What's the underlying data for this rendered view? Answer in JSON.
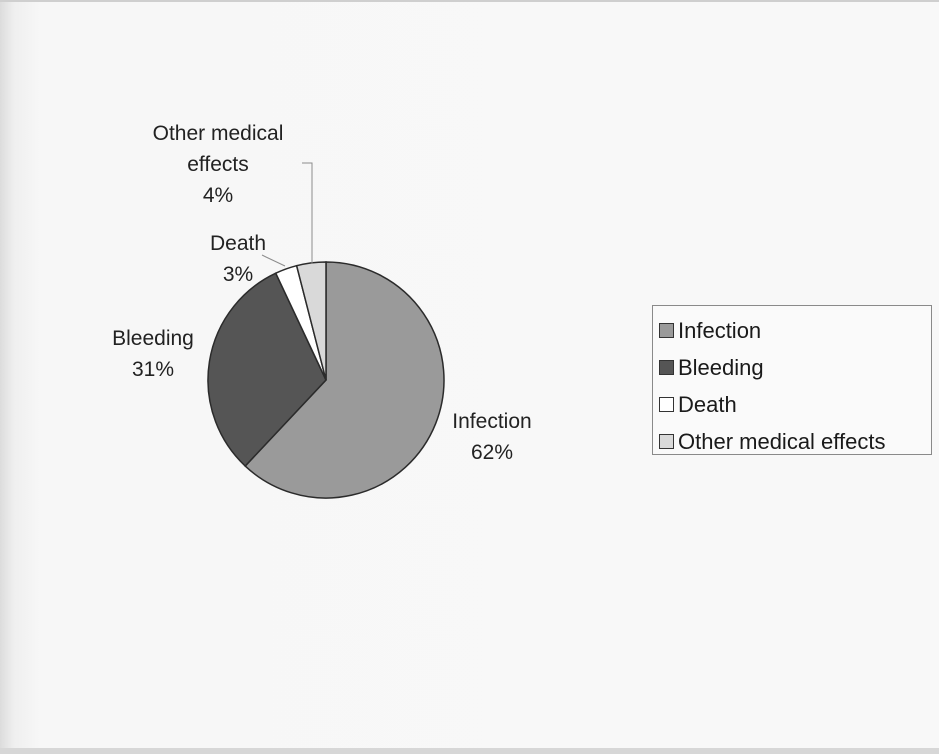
{
  "chart_data": {
    "type": "pie",
    "title": "",
    "slices": [
      {
        "label": "Infection",
        "value": 62,
        "value_label": "62%",
        "color": "#9a9a9a"
      },
      {
        "label": "Bleeding",
        "value": 31,
        "value_label": "31%",
        "color": "#555555"
      },
      {
        "label": "Death",
        "value": 3,
        "value_label": "3%",
        "color": "#ffffff"
      },
      {
        "label": "Other medical effects",
        "value": 4,
        "value_label": "4%",
        "color": "#d9d9d9"
      }
    ],
    "legend": {
      "position": "right",
      "entries": [
        "Infection",
        "Bleeding",
        "Death",
        "Other medical effects"
      ]
    },
    "data_labels": [
      {
        "lines": [
          "Infection",
          "62%"
        ]
      },
      {
        "lines": [
          "Bleeding",
          "31%"
        ]
      },
      {
        "lines": [
          "Death",
          "3%"
        ]
      },
      {
        "lines": [
          "Other medical",
          "effects",
          "4%"
        ]
      }
    ]
  }
}
